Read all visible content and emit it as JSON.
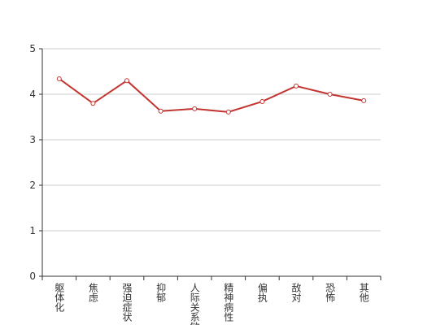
{
  "chart_data": {
    "type": "line",
    "categories": [
      "躯体化",
      "焦虑",
      "强迫症状",
      "抑郁",
      "人际关系敏感",
      "精神病性",
      "偏执",
      "敌对",
      "恐怖",
      "其他"
    ],
    "values": [
      4.34,
      3.8,
      4.3,
      3.63,
      3.68,
      3.61,
      3.84,
      4.18,
      4.0,
      3.86
    ],
    "color": "#c23531",
    "ylim": [
      0,
      5
    ],
    "yticks": [
      0,
      1,
      2,
      3,
      4,
      5
    ],
    "grid": true
  }
}
